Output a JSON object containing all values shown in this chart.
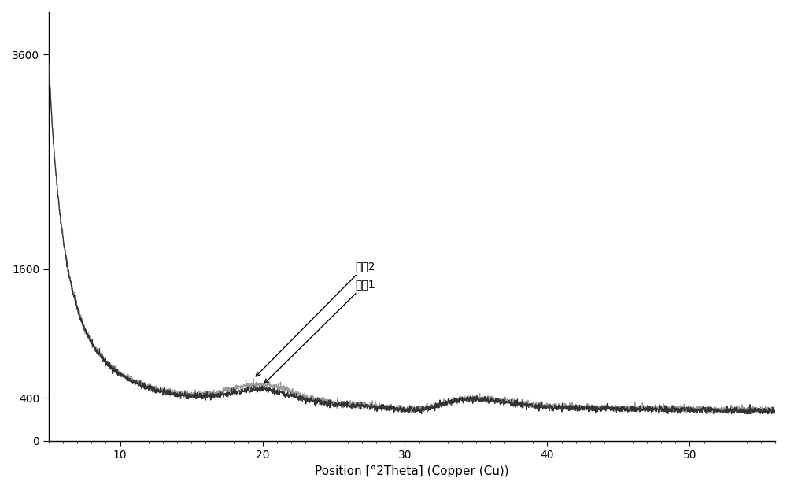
{
  "title": "",
  "xlabel": "Position [°2Theta] (Copper (Cu))",
  "ylabel": "",
  "xlim": [
    5,
    56
  ],
  "ylim": [
    0,
    4000
  ],
  "yticks": [
    0,
    400,
    1600,
    3600
  ],
  "xticks": [
    10,
    20,
    30,
    40,
    50
  ],
  "label1": "样品2",
  "label2": "样品1",
  "line_color1": "#333333",
  "line_color2": "#999999",
  "background_color": "#ffffff",
  "annotation_fontsize": 10,
  "axis_fontsize": 11
}
